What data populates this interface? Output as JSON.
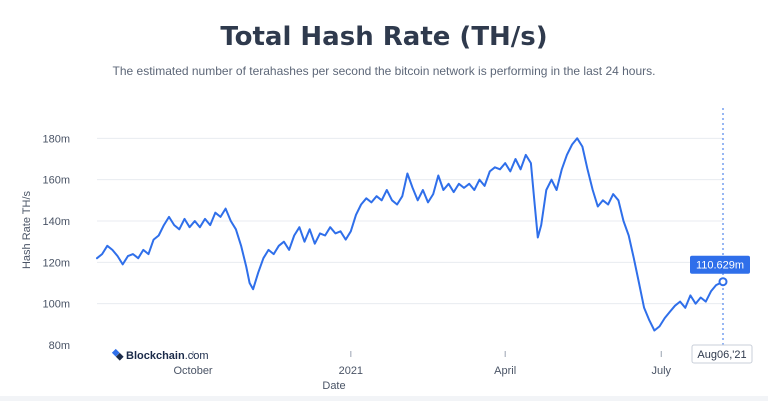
{
  "chart_data": {
    "type": "line",
    "title": "Total Hash Rate (TH/s)",
    "subtitle": "The estimated number of terahashes per second the bitcoin network is performing in the last 24 hours.",
    "xlabel": "Date",
    "ylabel": "Hash Rate TH/s",
    "yticks": [
      "180m",
      "160m",
      "140m",
      "120m",
      "100m",
      "80m"
    ],
    "ytick_values": [
      180,
      160,
      140,
      120,
      100,
      80
    ],
    "ylim": [
      80,
      185
    ],
    "xticks": [
      {
        "label": "October",
        "date": "2020-10-01"
      },
      {
        "label": "2021",
        "date": "2021-01-01"
      },
      {
        "label": "April",
        "date": "2021-04-01"
      },
      {
        "label": "July",
        "date": "2021-07-01"
      }
    ],
    "xlim": [
      "2020-08-06",
      "2021-08-06"
    ],
    "grid": "horizontal",
    "color": "#2f6fea",
    "watermark": {
      "brand": "Blockchain",
      "suffix": ".com"
    },
    "cursor": {
      "date_label": "Aug06,'21",
      "value_label": "110.629m",
      "date": "2021-08-06",
      "value": 110.629
    },
    "series": [
      {
        "values": [
          [
            "2020-08-06",
            122
          ],
          [
            "2020-08-09",
            124
          ],
          [
            "2020-08-12",
            128
          ],
          [
            "2020-08-15",
            126
          ],
          [
            "2020-08-18",
            123
          ],
          [
            "2020-08-21",
            119
          ],
          [
            "2020-08-24",
            123
          ],
          [
            "2020-08-27",
            124
          ],
          [
            "2020-08-30",
            122
          ],
          [
            "2020-09-02",
            126
          ],
          [
            "2020-09-05",
            124
          ],
          [
            "2020-09-08",
            131
          ],
          [
            "2020-09-11",
            133
          ],
          [
            "2020-09-14",
            138
          ],
          [
            "2020-09-17",
            142
          ],
          [
            "2020-09-20",
            138
          ],
          [
            "2020-09-23",
            136
          ],
          [
            "2020-09-26",
            141
          ],
          [
            "2020-09-29",
            137
          ],
          [
            "2020-10-02",
            140
          ],
          [
            "2020-10-05",
            137
          ],
          [
            "2020-10-08",
            141
          ],
          [
            "2020-10-11",
            138
          ],
          [
            "2020-10-14",
            144
          ],
          [
            "2020-10-17",
            142
          ],
          [
            "2020-10-20",
            146
          ],
          [
            "2020-10-23",
            140
          ],
          [
            "2020-10-26",
            136
          ],
          [
            "2020-10-29",
            128
          ],
          [
            "2020-11-01",
            118
          ],
          [
            "2020-11-03",
            110
          ],
          [
            "2020-11-05",
            107
          ],
          [
            "2020-11-08",
            115
          ],
          [
            "2020-11-11",
            122
          ],
          [
            "2020-11-14",
            126
          ],
          [
            "2020-11-17",
            124
          ],
          [
            "2020-11-20",
            128
          ],
          [
            "2020-11-23",
            130
          ],
          [
            "2020-11-26",
            126
          ],
          [
            "2020-11-29",
            133
          ],
          [
            "2020-12-02",
            137
          ],
          [
            "2020-12-05",
            130
          ],
          [
            "2020-12-08",
            136
          ],
          [
            "2020-12-11",
            129
          ],
          [
            "2020-12-14",
            134
          ],
          [
            "2020-12-17",
            133
          ],
          [
            "2020-12-20",
            137
          ],
          [
            "2020-12-23",
            134
          ],
          [
            "2020-12-26",
            135
          ],
          [
            "2020-12-29",
            131
          ],
          [
            "2021-01-01",
            135
          ],
          [
            "2021-01-04",
            143
          ],
          [
            "2021-01-07",
            148
          ],
          [
            "2021-01-10",
            151
          ],
          [
            "2021-01-13",
            149
          ],
          [
            "2021-01-16",
            152
          ],
          [
            "2021-01-19",
            150
          ],
          [
            "2021-01-22",
            155
          ],
          [
            "2021-01-25",
            150
          ],
          [
            "2021-01-28",
            148
          ],
          [
            "2021-01-31",
            152
          ],
          [
            "2021-02-03",
            163
          ],
          [
            "2021-02-06",
            156
          ],
          [
            "2021-02-09",
            150
          ],
          [
            "2021-02-12",
            155
          ],
          [
            "2021-02-15",
            149
          ],
          [
            "2021-02-18",
            153
          ],
          [
            "2021-02-21",
            162
          ],
          [
            "2021-02-24",
            155
          ],
          [
            "2021-02-27",
            158
          ],
          [
            "2021-03-02",
            154
          ],
          [
            "2021-03-05",
            158
          ],
          [
            "2021-03-08",
            156
          ],
          [
            "2021-03-11",
            158
          ],
          [
            "2021-03-14",
            155
          ],
          [
            "2021-03-17",
            160
          ],
          [
            "2021-03-20",
            157
          ],
          [
            "2021-03-23",
            164
          ],
          [
            "2021-03-26",
            166
          ],
          [
            "2021-03-29",
            165
          ],
          [
            "2021-04-01",
            168
          ],
          [
            "2021-04-04",
            164
          ],
          [
            "2021-04-07",
            170
          ],
          [
            "2021-04-10",
            165
          ],
          [
            "2021-04-13",
            172
          ],
          [
            "2021-04-16",
            168
          ],
          [
            "2021-04-18",
            150
          ],
          [
            "2021-04-20",
            132
          ],
          [
            "2021-04-22",
            138
          ],
          [
            "2021-04-25",
            155
          ],
          [
            "2021-04-28",
            160
          ],
          [
            "2021-05-01",
            155
          ],
          [
            "2021-05-04",
            165
          ],
          [
            "2021-05-07",
            172
          ],
          [
            "2021-05-10",
            177
          ],
          [
            "2021-05-13",
            180
          ],
          [
            "2021-05-16",
            176
          ],
          [
            "2021-05-19",
            165
          ],
          [
            "2021-05-22",
            155
          ],
          [
            "2021-05-25",
            147
          ],
          [
            "2021-05-28",
            150
          ],
          [
            "2021-05-31",
            148
          ],
          [
            "2021-06-03",
            153
          ],
          [
            "2021-06-06",
            150
          ],
          [
            "2021-06-09",
            140
          ],
          [
            "2021-06-12",
            133
          ],
          [
            "2021-06-15",
            122
          ],
          [
            "2021-06-18",
            110
          ],
          [
            "2021-06-21",
            98
          ],
          [
            "2021-06-24",
            92
          ],
          [
            "2021-06-27",
            87
          ],
          [
            "2021-06-30",
            89
          ],
          [
            "2021-07-03",
            93
          ],
          [
            "2021-07-06",
            96
          ],
          [
            "2021-07-09",
            99
          ],
          [
            "2021-07-12",
            101
          ],
          [
            "2021-07-15",
            98
          ],
          [
            "2021-07-18",
            104
          ],
          [
            "2021-07-21",
            100
          ],
          [
            "2021-07-24",
            103
          ],
          [
            "2021-07-27",
            101
          ],
          [
            "2021-07-30",
            106
          ],
          [
            "2021-08-02",
            109
          ],
          [
            "2021-08-06",
            110.629
          ]
        ]
      }
    ]
  }
}
